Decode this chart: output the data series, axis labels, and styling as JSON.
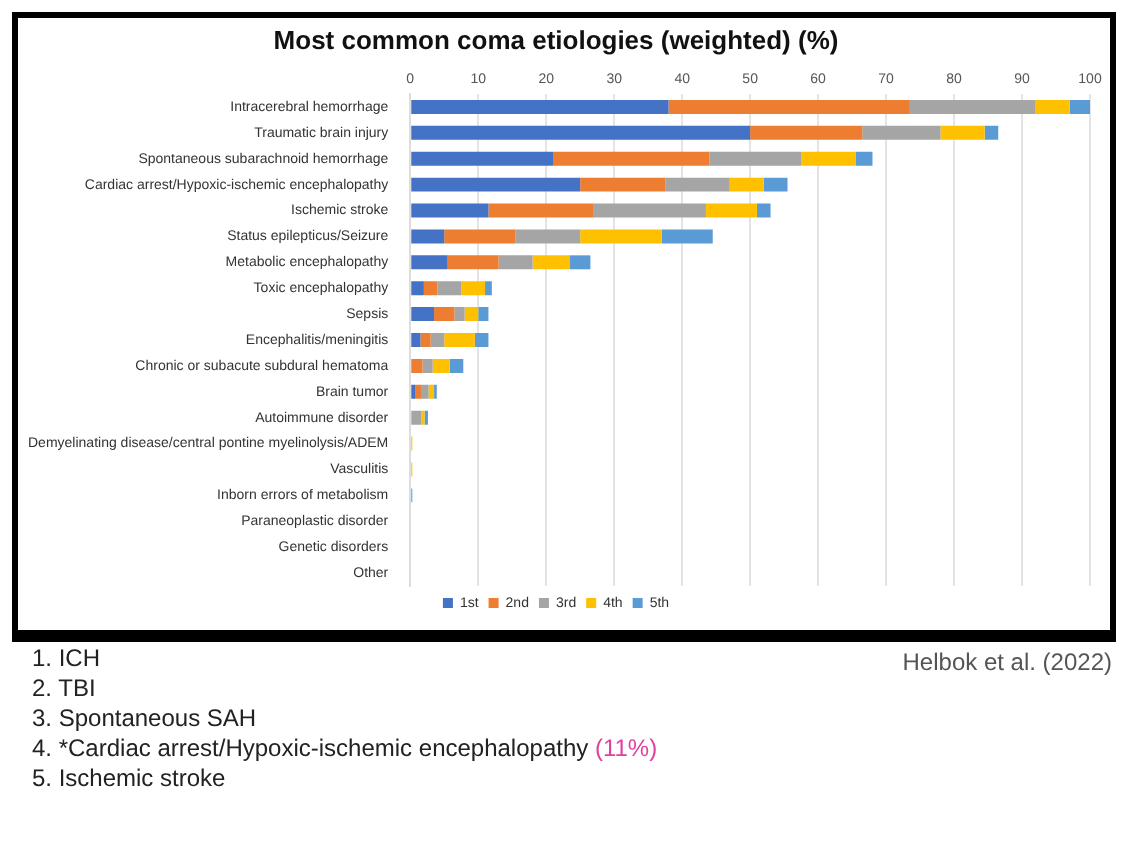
{
  "chart_data": {
    "type": "bar",
    "orientation": "horizontal",
    "stacked": true,
    "title": "Most common coma etiologies (weighted) (%)",
    "categories": [
      "Intracerebral hemorrhage",
      "Traumatic brain injury",
      "Spontaneous subarachnoid hemorrhage",
      "Cardiac arrest/Hypoxic-ischemic encephalopathy",
      "Ischemic stroke",
      "Status epilepticus/Seizure",
      "Metabolic encephalopathy",
      "Toxic encephalopathy",
      "Sepsis",
      "Encephalitis/meningitis",
      "Chronic or subacute subdural hematoma",
      "Brain tumor",
      "Autoimmune disorder",
      "Demyelinating disease/central pontine myelinolysis/ADEM",
      "Vasculitis",
      "Inborn errors of metabolism",
      "Paraneoplastic disorder",
      "Genetic disorders",
      "Other"
    ],
    "series": [
      {
        "name": "1st",
        "color": "#4472c4",
        "values": [
          38,
          50,
          21,
          25,
          11.5,
          5,
          5.5,
          2,
          3.5,
          1.5,
          0,
          0.7,
          0,
          0,
          0,
          0,
          0,
          0,
          0
        ]
      },
      {
        "name": "2nd",
        "color": "#ed7d31",
        "values": [
          35.5,
          16.5,
          23,
          12.5,
          15.5,
          10.5,
          7.5,
          2,
          3,
          1.5,
          1.8,
          1,
          0,
          0,
          0,
          0,
          0,
          0,
          0
        ]
      },
      {
        "name": "3rd",
        "color": "#a5a5a5",
        "values": [
          18.5,
          11.5,
          13.5,
          9.5,
          16.5,
          9.5,
          5,
          3.5,
          1.5,
          2,
          1.5,
          1,
          1.6,
          0,
          0,
          0,
          0,
          0,
          0
        ]
      },
      {
        "name": "4th",
        "color": "#ffc000",
        "values": [
          5,
          6.5,
          8,
          5,
          7.5,
          12,
          5.5,
          3.5,
          2,
          4.5,
          2.5,
          0.8,
          0.5,
          0.3,
          0.3,
          0,
          0,
          0,
          0
        ]
      },
      {
        "name": "5th",
        "color": "#5b9bd5",
        "values": [
          3,
          2,
          2.5,
          3.5,
          2,
          7.5,
          3,
          1,
          1.5,
          2,
          2,
          0.4,
          0.5,
          0,
          0,
          0.3,
          0,
          0,
          0
        ]
      }
    ],
    "xlim": [
      0,
      100
    ],
    "xticks": [
      0,
      10,
      20,
      30,
      40,
      50,
      60,
      70,
      80,
      90,
      100
    ],
    "grid": "x",
    "legend": "bottom",
    "annotations": [
      "1. ICH",
      "2. TBI",
      "3. Spontaneous SAH",
      "4. *Cardiac arrest/Hypoxic-ischemic encephalopathy (11%)",
      "5. Ischemic stroke",
      "Helbok et al. (2022)"
    ]
  }
}
